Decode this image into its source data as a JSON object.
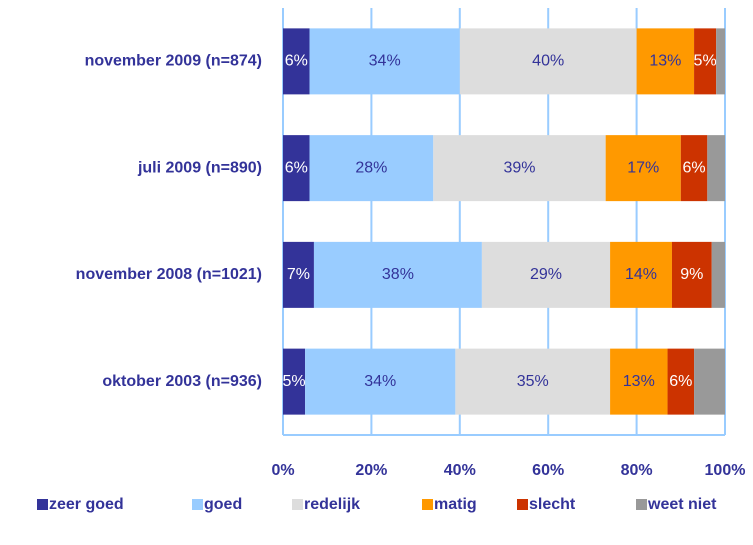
{
  "chart_data": {
    "type": "stacked_barh",
    "categories": [
      "november 2009 (n=874)",
      "juli 2009 (n=890)",
      "november 2008 (n=1021)",
      "oktober 2003 (n=936)"
    ],
    "series": [
      {
        "name": "zeer goed",
        "color": "#333399",
        "values": [
          6,
          6,
          7,
          5
        ],
        "value_labels": [
          "6%",
          "6%",
          "7%",
          "5%"
        ]
      },
      {
        "name": "goed",
        "color": "#99ccff",
        "values": [
          34,
          28,
          38,
          34
        ],
        "value_labels": [
          "34%",
          "28%",
          "38%",
          "34%"
        ]
      },
      {
        "name": "redelijk",
        "color": "#dddddd",
        "values": [
          40,
          39,
          29,
          35
        ],
        "value_labels": [
          "40%",
          "39%",
          "29%",
          "35%"
        ]
      },
      {
        "name": "matig",
        "color": "#ff9900",
        "values": [
          13,
          17,
          14,
          13
        ],
        "value_labels": [
          "13%",
          "17%",
          "14%",
          "13%"
        ]
      },
      {
        "name": "slecht",
        "color": "#cc3300",
        "values": [
          5,
          6,
          9,
          6
        ],
        "value_labels": [
          "5%",
          "6%",
          "9%",
          "6%"
        ]
      },
      {
        "name": "weet niet",
        "color": "#999999",
        "values": [
          2,
          4,
          3,
          7
        ]
      }
    ],
    "xlim": [
      0,
      100
    ],
    "xticks": [
      {
        "value": 0,
        "label": "0%"
      },
      {
        "value": 20,
        "label": "20%"
      },
      {
        "value": 40,
        "label": "40%"
      },
      {
        "value": 60,
        "label": "60%"
      },
      {
        "value": 80,
        "label": "80%"
      },
      {
        "value": 100,
        "label": "100%"
      }
    ],
    "grid": true,
    "legend": "bottom"
  }
}
